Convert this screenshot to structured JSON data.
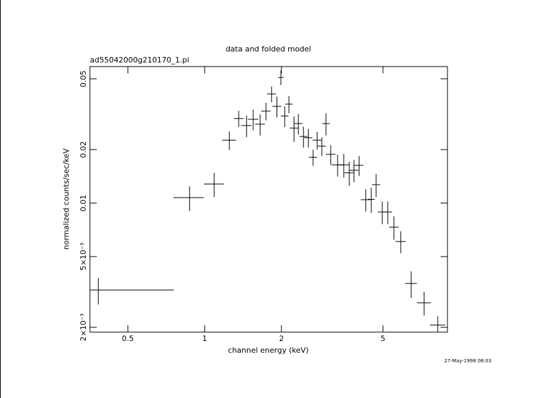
{
  "chart_data": {
    "type": "scatter",
    "title": "data and folded model",
    "subtitle": "ad55042000g210170_1.pi",
    "x_label": "channel energy (keV)",
    "y_label": "normalized counts/sec/keV",
    "footnote": "27-May-1998 08:03",
    "xscale": "log",
    "yscale": "log",
    "color": "#000000",
    "xlim": [
      0.355,
      8.95
    ],
    "ylim": [
      0.00188,
      0.0586
    ],
    "xticks": [
      0.5,
      1,
      2,
      5
    ],
    "yticks": [
      {
        "value": 0.002,
        "label": "2×10⁻³"
      },
      {
        "value": 0.005,
        "label": "5×10⁻³"
      },
      0.01,
      0.02,
      0.05
    ],
    "x": [
      0.383,
      0.873,
      1.09,
      1.25,
      1.36,
      1.46,
      1.55,
      1.65,
      1.74,
      1.83,
      1.92,
      1.99,
      2.06,
      2.14,
      2.24,
      2.33,
      2.44,
      2.55,
      2.66,
      2.76,
      2.88,
      2.99,
      3.12,
      3.32,
      3.51,
      3.69,
      3.85,
      4.03,
      4.28,
      4.5,
      4.7,
      4.97,
      5.22,
      5.52,
      5.87,
      6.45,
      7.25,
      8.2
    ],
    "xerr": [
      0.374,
      0.119,
      0.098,
      0.078,
      0.059,
      0.068,
      0.072,
      0.072,
      0.076,
      0.074,
      0.077,
      0.049,
      0.07,
      0.073,
      0.083,
      0.087,
      0.091,
      0.095,
      0.099,
      0.111,
      0.107,
      0.102,
      0.135,
      0.175,
      0.196,
      0.16,
      0.155,
      0.162,
      0.186,
      0.14,
      0.175,
      0.2,
      0.21,
      0.24,
      0.273,
      0.34,
      0.45,
      0.56
    ],
    "values": [
      0.00324,
      0.01073,
      0.0128,
      0.0226,
      0.0299,
      0.0273,
      0.0296,
      0.0278,
      0.0329,
      0.0411,
      0.035,
      0.0509,
      0.0309,
      0.036,
      0.0264,
      0.028,
      0.0237,
      0.0233,
      0.0181,
      0.0226,
      0.0209,
      0.028,
      0.0188,
      0.0164,
      0.0164,
      0.0148,
      0.0153,
      0.0163,
      0.01045,
      0.0105,
      0.0127,
      0.00891,
      0.00891,
      0.00732,
      0.00608,
      0.00353,
      0.00275,
      0.00206
    ],
    "yerr": [
      0.00055,
      0.0017,
      0.002,
      0.0027,
      0.0031,
      0.0038,
      0.0039,
      0.0038,
      0.0037,
      0.0042,
      0.0047,
      0.0048,
      0.0041,
      0.004,
      0.0043,
      0.0037,
      0.0032,
      0.0028,
      0.0019,
      0.0026,
      0.0025,
      0.004,
      0.0024,
      0.0023,
      0.0025,
      0.0023,
      0.0022,
      0.0021,
      0.0015,
      0.0017,
      0.0019,
      0.0013,
      0.0013,
      0.0011,
      0.00086,
      0.0006,
      0.00042,
      0.00025
    ]
  }
}
